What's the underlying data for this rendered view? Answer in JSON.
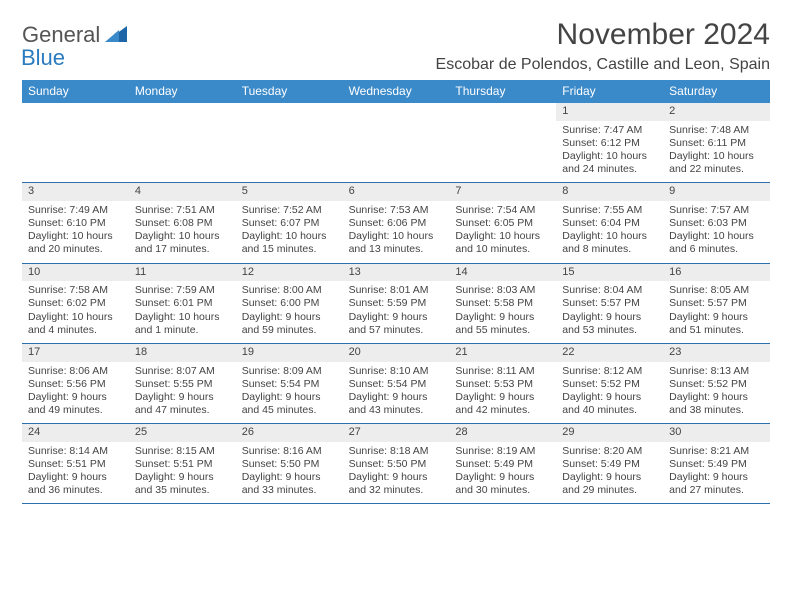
{
  "brand": {
    "part1": "General",
    "part2": "Blue"
  },
  "title": "November 2024",
  "location": "Escobar de Polendos, Castille and Leon, Spain",
  "day_names": [
    "Sunday",
    "Monday",
    "Tuesday",
    "Wednesday",
    "Thursday",
    "Friday",
    "Saturday"
  ],
  "colors": {
    "header_bg": "#3a89c9",
    "header_text": "#ffffff",
    "daynum_bg": "#ededed",
    "rule": "#2f6fa9",
    "body_text": "#444444",
    "logo_blue": "#2b7bbf"
  },
  "type": "calendar-table",
  "columns": 7,
  "weeks": [
    [
      null,
      null,
      null,
      null,
      null,
      {
        "n": "1",
        "sr": "Sunrise: 7:47 AM",
        "ss": "Sunset: 6:12 PM",
        "d1": "Daylight: 10 hours",
        "d2": "and 24 minutes."
      },
      {
        "n": "2",
        "sr": "Sunrise: 7:48 AM",
        "ss": "Sunset: 6:11 PM",
        "d1": "Daylight: 10 hours",
        "d2": "and 22 minutes."
      }
    ],
    [
      {
        "n": "3",
        "sr": "Sunrise: 7:49 AM",
        "ss": "Sunset: 6:10 PM",
        "d1": "Daylight: 10 hours",
        "d2": "and 20 minutes."
      },
      {
        "n": "4",
        "sr": "Sunrise: 7:51 AM",
        "ss": "Sunset: 6:08 PM",
        "d1": "Daylight: 10 hours",
        "d2": "and 17 minutes."
      },
      {
        "n": "5",
        "sr": "Sunrise: 7:52 AM",
        "ss": "Sunset: 6:07 PM",
        "d1": "Daylight: 10 hours",
        "d2": "and 15 minutes."
      },
      {
        "n": "6",
        "sr": "Sunrise: 7:53 AM",
        "ss": "Sunset: 6:06 PM",
        "d1": "Daylight: 10 hours",
        "d2": "and 13 minutes."
      },
      {
        "n": "7",
        "sr": "Sunrise: 7:54 AM",
        "ss": "Sunset: 6:05 PM",
        "d1": "Daylight: 10 hours",
        "d2": "and 10 minutes."
      },
      {
        "n": "8",
        "sr": "Sunrise: 7:55 AM",
        "ss": "Sunset: 6:04 PM",
        "d1": "Daylight: 10 hours",
        "d2": "and 8 minutes."
      },
      {
        "n": "9",
        "sr": "Sunrise: 7:57 AM",
        "ss": "Sunset: 6:03 PM",
        "d1": "Daylight: 10 hours",
        "d2": "and 6 minutes."
      }
    ],
    [
      {
        "n": "10",
        "sr": "Sunrise: 7:58 AM",
        "ss": "Sunset: 6:02 PM",
        "d1": "Daylight: 10 hours",
        "d2": "and 4 minutes."
      },
      {
        "n": "11",
        "sr": "Sunrise: 7:59 AM",
        "ss": "Sunset: 6:01 PM",
        "d1": "Daylight: 10 hours",
        "d2": "and 1 minute."
      },
      {
        "n": "12",
        "sr": "Sunrise: 8:00 AM",
        "ss": "Sunset: 6:00 PM",
        "d1": "Daylight: 9 hours",
        "d2": "and 59 minutes."
      },
      {
        "n": "13",
        "sr": "Sunrise: 8:01 AM",
        "ss": "Sunset: 5:59 PM",
        "d1": "Daylight: 9 hours",
        "d2": "and 57 minutes."
      },
      {
        "n": "14",
        "sr": "Sunrise: 8:03 AM",
        "ss": "Sunset: 5:58 PM",
        "d1": "Daylight: 9 hours",
        "d2": "and 55 minutes."
      },
      {
        "n": "15",
        "sr": "Sunrise: 8:04 AM",
        "ss": "Sunset: 5:57 PM",
        "d1": "Daylight: 9 hours",
        "d2": "and 53 minutes."
      },
      {
        "n": "16",
        "sr": "Sunrise: 8:05 AM",
        "ss": "Sunset: 5:57 PM",
        "d1": "Daylight: 9 hours",
        "d2": "and 51 minutes."
      }
    ],
    [
      {
        "n": "17",
        "sr": "Sunrise: 8:06 AM",
        "ss": "Sunset: 5:56 PM",
        "d1": "Daylight: 9 hours",
        "d2": "and 49 minutes."
      },
      {
        "n": "18",
        "sr": "Sunrise: 8:07 AM",
        "ss": "Sunset: 5:55 PM",
        "d1": "Daylight: 9 hours",
        "d2": "and 47 minutes."
      },
      {
        "n": "19",
        "sr": "Sunrise: 8:09 AM",
        "ss": "Sunset: 5:54 PM",
        "d1": "Daylight: 9 hours",
        "d2": "and 45 minutes."
      },
      {
        "n": "20",
        "sr": "Sunrise: 8:10 AM",
        "ss": "Sunset: 5:54 PM",
        "d1": "Daylight: 9 hours",
        "d2": "and 43 minutes."
      },
      {
        "n": "21",
        "sr": "Sunrise: 8:11 AM",
        "ss": "Sunset: 5:53 PM",
        "d1": "Daylight: 9 hours",
        "d2": "and 42 minutes."
      },
      {
        "n": "22",
        "sr": "Sunrise: 8:12 AM",
        "ss": "Sunset: 5:52 PM",
        "d1": "Daylight: 9 hours",
        "d2": "and 40 minutes."
      },
      {
        "n": "23",
        "sr": "Sunrise: 8:13 AM",
        "ss": "Sunset: 5:52 PM",
        "d1": "Daylight: 9 hours",
        "d2": "and 38 minutes."
      }
    ],
    [
      {
        "n": "24",
        "sr": "Sunrise: 8:14 AM",
        "ss": "Sunset: 5:51 PM",
        "d1": "Daylight: 9 hours",
        "d2": "and 36 minutes."
      },
      {
        "n": "25",
        "sr": "Sunrise: 8:15 AM",
        "ss": "Sunset: 5:51 PM",
        "d1": "Daylight: 9 hours",
        "d2": "and 35 minutes."
      },
      {
        "n": "26",
        "sr": "Sunrise: 8:16 AM",
        "ss": "Sunset: 5:50 PM",
        "d1": "Daylight: 9 hours",
        "d2": "and 33 minutes."
      },
      {
        "n": "27",
        "sr": "Sunrise: 8:18 AM",
        "ss": "Sunset: 5:50 PM",
        "d1": "Daylight: 9 hours",
        "d2": "and 32 minutes."
      },
      {
        "n": "28",
        "sr": "Sunrise: 8:19 AM",
        "ss": "Sunset: 5:49 PM",
        "d1": "Daylight: 9 hours",
        "d2": "and 30 minutes."
      },
      {
        "n": "29",
        "sr": "Sunrise: 8:20 AM",
        "ss": "Sunset: 5:49 PM",
        "d1": "Daylight: 9 hours",
        "d2": "and 29 minutes."
      },
      {
        "n": "30",
        "sr": "Sunrise: 8:21 AM",
        "ss": "Sunset: 5:49 PM",
        "d1": "Daylight: 9 hours",
        "d2": "and 27 minutes."
      }
    ]
  ]
}
